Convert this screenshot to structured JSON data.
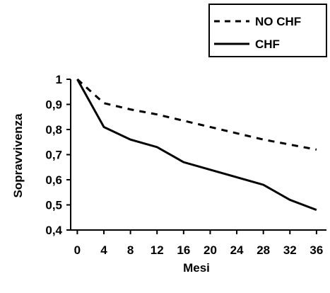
{
  "chart_data": {
    "type": "line",
    "xlabel": "Mesi",
    "ylabel": "Sopravvivenza",
    "x": [
      0,
      4,
      8,
      12,
      16,
      20,
      24,
      28,
      32,
      36
    ],
    "xticks": [
      "0",
      "4",
      "8",
      "12",
      "16",
      "20",
      "24",
      "28",
      "32",
      "36"
    ],
    "yticks": [
      "0,4",
      "0,5",
      "0,6",
      "0,7",
      "0,8",
      "0,9",
      "1"
    ],
    "ylim": [
      0.4,
      1.0
    ],
    "xlim": [
      -1,
      37.5
    ],
    "grid": false,
    "legend": "top-right",
    "series": [
      {
        "name": "NO CHF",
        "style": "dashed",
        "color": "#000000",
        "x": [
          0,
          4,
          8,
          12,
          16,
          20,
          24,
          28,
          32,
          36
        ],
        "values": [
          1.0,
          0.905,
          0.88,
          0.86,
          0.835,
          0.81,
          0.785,
          0.76,
          0.74,
          0.72
        ]
      },
      {
        "name": "CHF",
        "style": "solid",
        "color": "#000000",
        "x": [
          0,
          4,
          8,
          12,
          16,
          20,
          24,
          28,
          32,
          36
        ],
        "values": [
          1.0,
          0.81,
          0.76,
          0.73,
          0.67,
          0.64,
          0.61,
          0.58,
          0.52,
          0.48
        ]
      }
    ]
  }
}
